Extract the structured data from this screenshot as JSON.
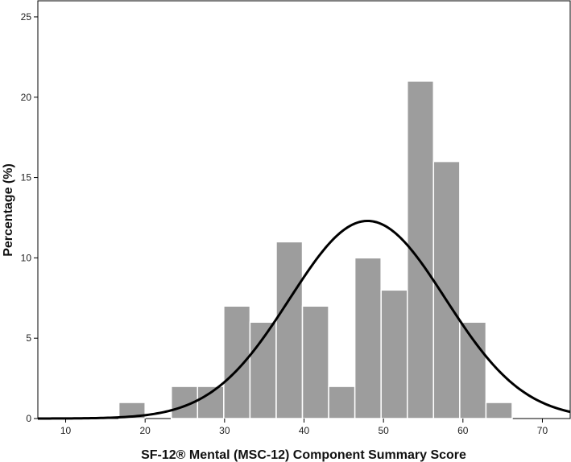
{
  "chart_data": {
    "type": "bar",
    "subtype": "histogram-with-normal-curve",
    "title": "",
    "xlabel": "SF-12® Mental (MSC-12) Component Summary Score",
    "ylabel": "Percentage (%)",
    "xlim": [
      6.5,
      73.5
    ],
    "ylim": [
      0,
      26
    ],
    "x_ticks": [
      10,
      20,
      30,
      40,
      50,
      60,
      70
    ],
    "y_ticks": [
      0,
      5,
      10,
      15,
      20,
      25
    ],
    "grid": false,
    "bin_width": 3.3,
    "bins": [
      {
        "start": 16.7,
        "value": 1
      },
      {
        "start": 20.0,
        "value": 0
      },
      {
        "start": 23.3,
        "value": 2
      },
      {
        "start": 26.6,
        "value": 2
      },
      {
        "start": 29.9,
        "value": 7
      },
      {
        "start": 33.2,
        "value": 6
      },
      {
        "start": 36.5,
        "value": 11
      },
      {
        "start": 39.8,
        "value": 7
      },
      {
        "start": 43.1,
        "value": 2
      },
      {
        "start": 46.4,
        "value": 10
      },
      {
        "start": 49.7,
        "value": 8
      },
      {
        "start": 53.0,
        "value": 21
      },
      {
        "start": 56.3,
        "value": 16
      },
      {
        "start": 59.6,
        "value": 6
      },
      {
        "start": 62.9,
        "value": 1
      }
    ],
    "normal_curve": {
      "mean": 48.0,
      "sd": 9.8,
      "peak": 12.3
    },
    "colors": {
      "bar_fill": "#9d9d9d",
      "bar_stroke": "#ffffff",
      "curve": "#000000",
      "axis": "#000000"
    }
  }
}
